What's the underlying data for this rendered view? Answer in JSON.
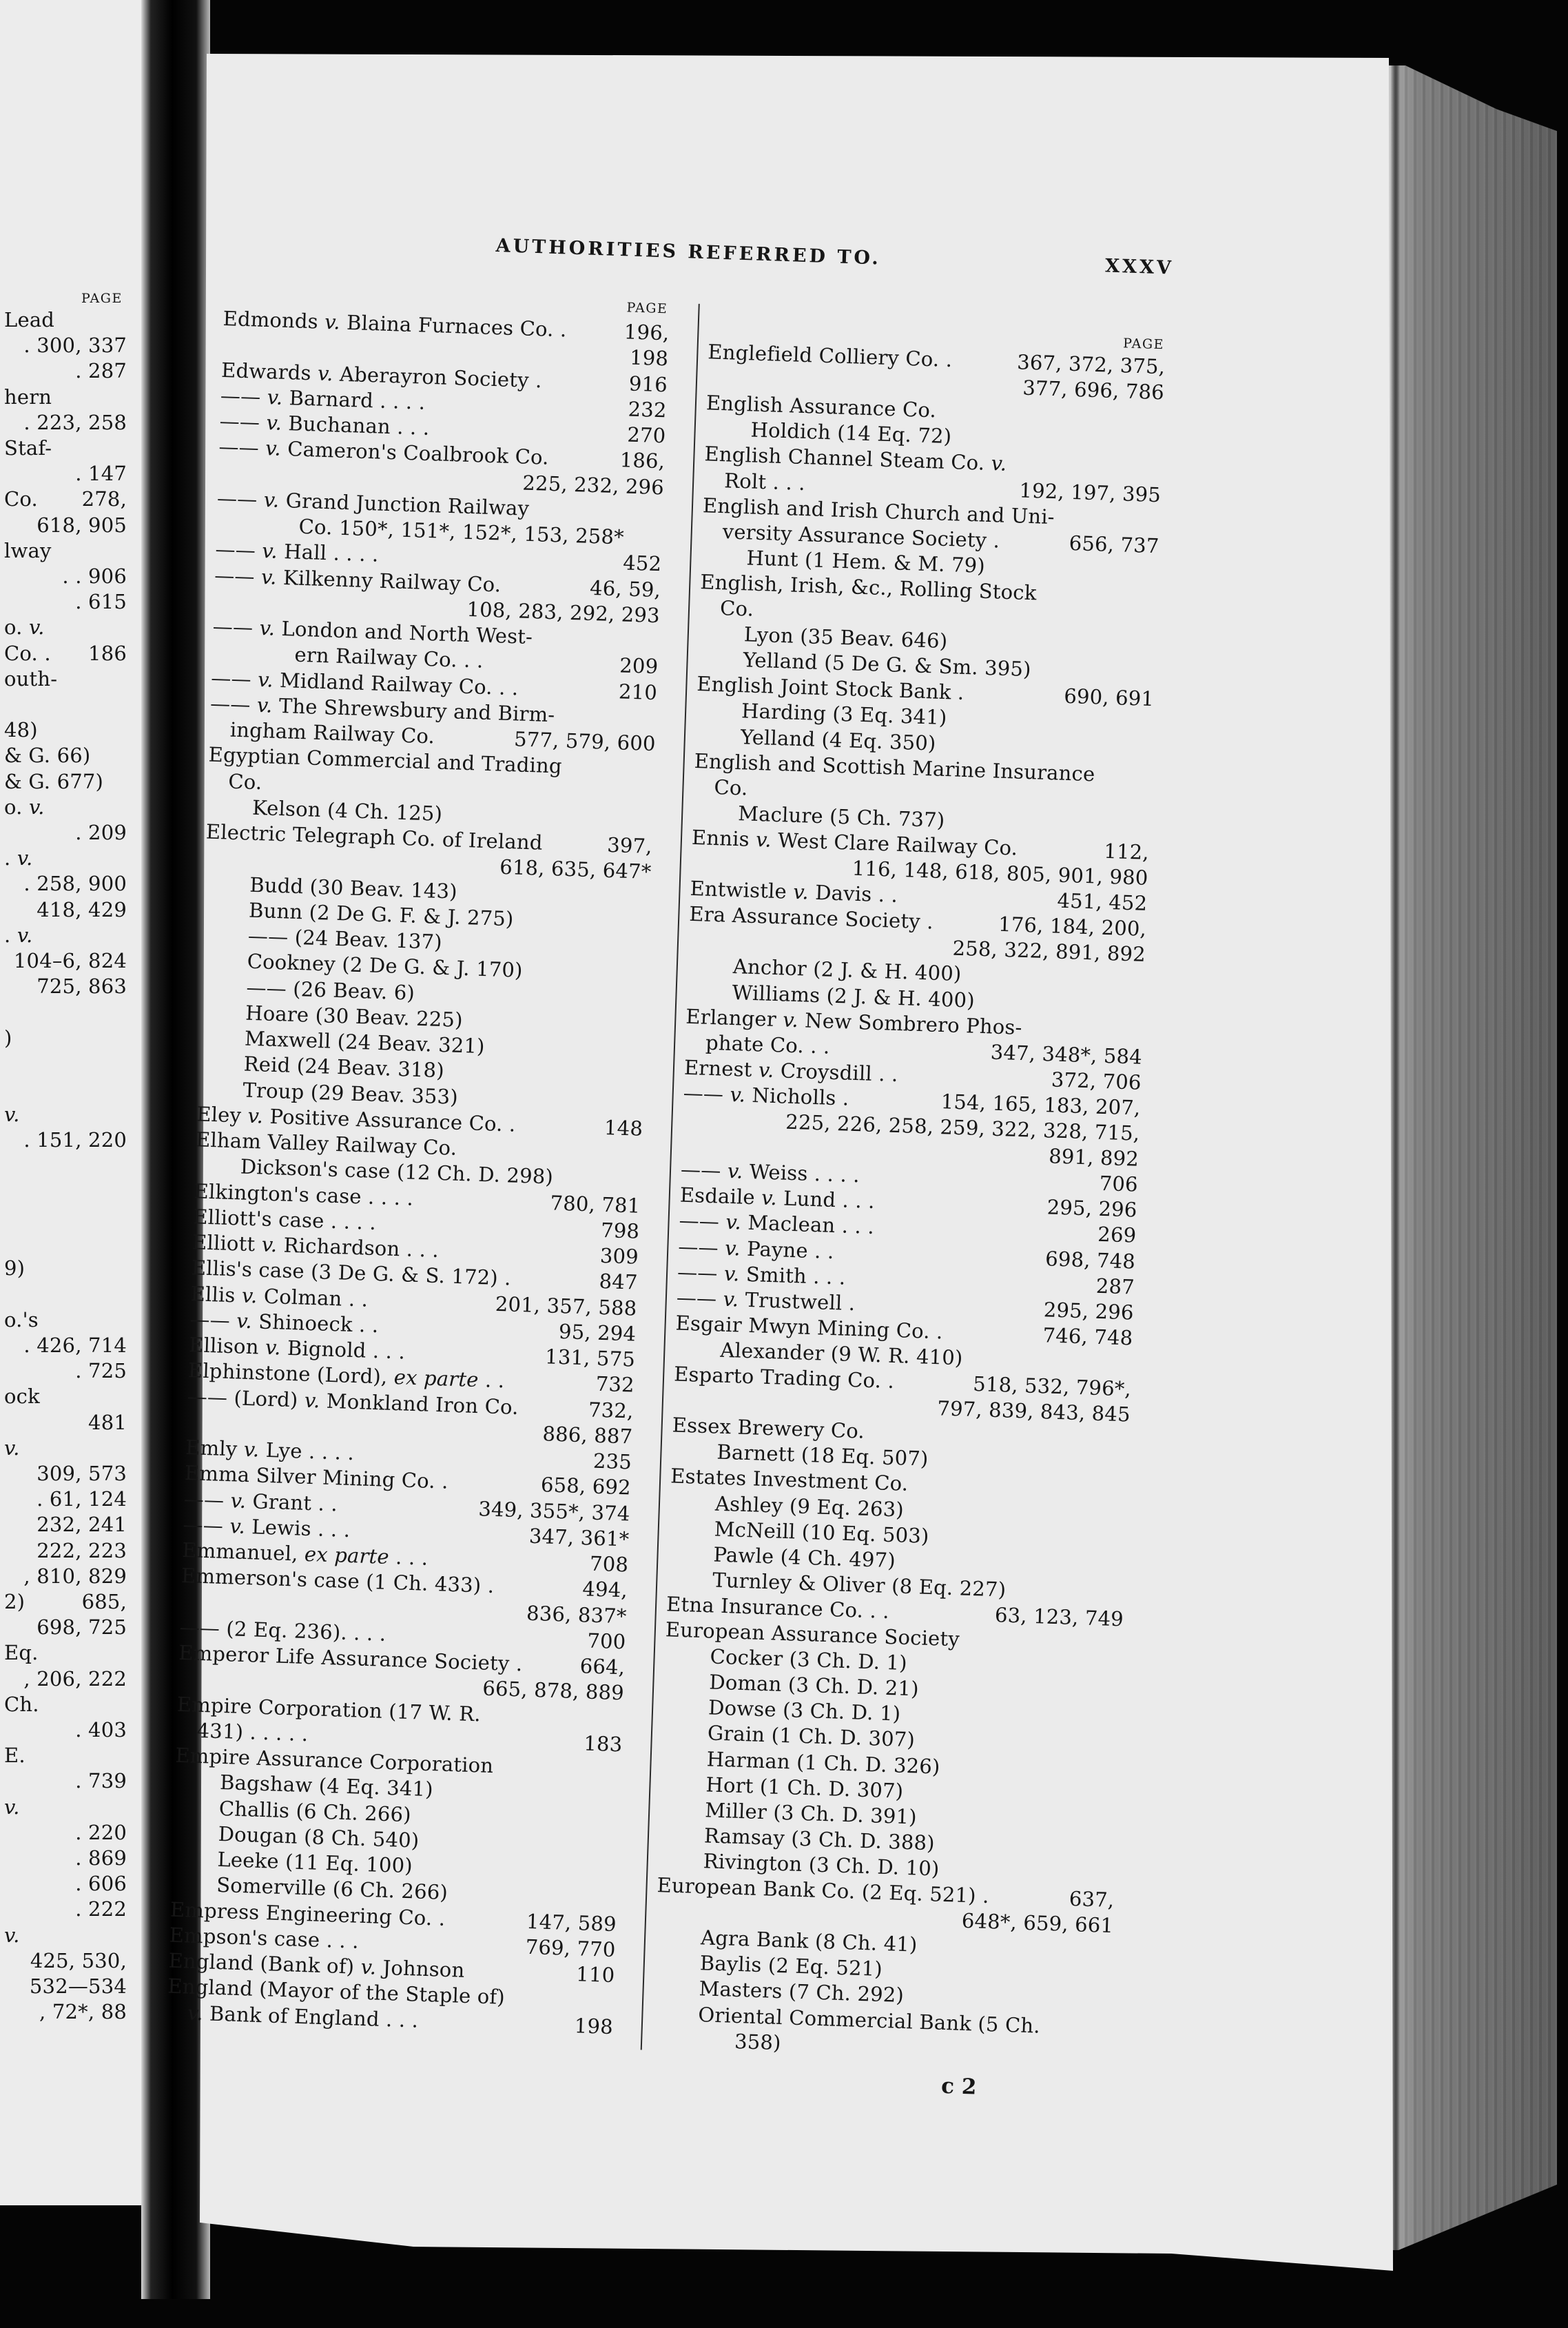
{
  "header": {
    "title": "AUTHORITIES REFERRED TO.",
    "page_number": "XXXV"
  },
  "page_label": "PAGE",
  "signature": "c 2",
  "left_page_fragment": {
    "page_label": "PAGE",
    "lines": [
      {
        "t": "Lead",
        "p": ""
      },
      {
        "t": "",
        "p": ". 300, 337"
      },
      {
        "t": "",
        "p": ". 287"
      },
      {
        "t": "hern",
        "p": ""
      },
      {
        "t": "",
        "p": ". 223, 258"
      },
      {
        "t": "Staf-",
        "p": ""
      },
      {
        "t": "",
        "p": ". 147"
      },
      {
        "t": "Co.",
        "p": "278,"
      },
      {
        "t": "",
        "p": "618, 905"
      },
      {
        "t": "lway",
        "p": ""
      },
      {
        "t": "",
        "p": ". . 906"
      },
      {
        "t": "",
        "p": ". 615"
      },
      {
        "t": "o. v.",
        "p": ""
      },
      {
        "t": "Co. .",
        "p": "186"
      },
      {
        "t": "outh-",
        "p": ""
      },
      {
        "t": "",
        "p": ""
      },
      {
        "t": "48)",
        "p": ""
      },
      {
        "t": "& G. 66)",
        "p": ""
      },
      {
        "t": "& G. 677)",
        "p": ""
      },
      {
        "t": "o. v.",
        "p": ""
      },
      {
        "t": "",
        "p": ". 209"
      },
      {
        "t": ". v.",
        "p": ""
      },
      {
        "t": "",
        "p": ". 258, 900"
      },
      {
        "t": "",
        "p": "418, 429"
      },
      {
        "t": ". v.",
        "p": ""
      },
      {
        "t": "",
        "p": "104–6, 824"
      },
      {
        "t": "",
        "p": "725, 863"
      },
      {
        "t": "",
        "p": ""
      },
      {
        "t": ")",
        "p": ""
      },
      {
        "t": "",
        "p": ""
      },
      {
        "t": "",
        "p": ""
      },
      {
        "t": "v.",
        "p": ""
      },
      {
        "t": "",
        "p": ". 151, 220"
      },
      {
        "t": "",
        "p": ""
      },
      {
        "t": "",
        "p": ""
      },
      {
        "t": "",
        "p": ""
      },
      {
        "t": "",
        "p": ""
      },
      {
        "t": "9)",
        "p": ""
      },
      {
        "t": "",
        "p": ""
      },
      {
        "t": "o.'s",
        "p": ""
      },
      {
        "t": "",
        "p": ". 426, 714"
      },
      {
        "t": "",
        "p": ". 725"
      },
      {
        "t": "ock",
        "p": ""
      },
      {
        "t": "",
        "p": "481"
      },
      {
        "t": "v.",
        "p": ""
      },
      {
        "t": "",
        "p": "309, 573"
      },
      {
        "t": "",
        "p": ". 61, 124"
      },
      {
        "t": "",
        "p": "232, 241"
      },
      {
        "t": "",
        "p": "222, 223"
      },
      {
        "t": "",
        "p": ", 810, 829"
      },
      {
        "t": "2)",
        "p": "685,"
      },
      {
        "t": "",
        "p": "698, 725"
      },
      {
        "t": "Eq.",
        "p": ""
      },
      {
        "t": "",
        "p": ", 206, 222"
      },
      {
        "t": "Ch.",
        "p": ""
      },
      {
        "t": "",
        "p": ". 403"
      },
      {
        "t": "E.",
        "p": ""
      },
      {
        "t": "",
        "p": ". 739"
      },
      {
        "t": "v.",
        "p": ""
      },
      {
        "t": "",
        "p": ". 220"
      },
      {
        "t": "",
        "p": ". 869"
      },
      {
        "t": "",
        "p": ". 606"
      },
      {
        "t": "",
        "p": ". 222"
      },
      {
        "t": "v.",
        "p": ""
      },
      {
        "t": "",
        "p": "425, 530,"
      },
      {
        "t": "",
        "p": "532—534"
      },
      {
        "t": "",
        "p": ", 72*, 88"
      }
    ]
  },
  "left_column": [
    {
      "t": "Edmonds v. Blaina Furnaces Co. .",
      "p": "196,",
      "l": 0
    },
    {
      "t": "",
      "p": "198",
      "l": 0
    },
    {
      "t": "Edwards v. Aberayron Society  .",
      "p": "916",
      "l": 0
    },
    {
      "t": "—— v. Barnard  .  .  .  .",
      "p": "232",
      "l": 0
    },
    {
      "t": "—— v. Buchanan  .  .  .",
      "p": "270",
      "l": 0
    },
    {
      "t": "—— v. Cameron's Coalbrook Co.",
      "p": "186,",
      "l": 0
    },
    {
      "t": "",
      "p": "225, 232, 296",
      "l": 0
    },
    {
      "t": "—— v. Grand Junction Railway",
      "p": "",
      "l": 0
    },
    {
      "t": "Co.  150*, 151*, 152*, 153, 258*",
      "p": "",
      "l": 3
    },
    {
      "t": "—— v. Hall  .  .  .  .",
      "p": "452",
      "l": 0
    },
    {
      "t": "—— v. Kilkenny Railway Co.",
      "p": "46, 59,",
      "l": 0
    },
    {
      "t": "",
      "p": "108, 283, 292, 293",
      "l": 0
    },
    {
      "t": "—— v. London and North West-",
      "p": "",
      "l": 0
    },
    {
      "t": "ern Railway Co.  .  .",
      "p": "209",
      "l": 3
    },
    {
      "t": "—— v. Midland Railway Co. .  .",
      "p": "210",
      "l": 0
    },
    {
      "t": "—— v. The Shrewsbury and Birm-",
      "p": "",
      "l": 0
    },
    {
      "t": "ingham Railway Co.",
      "p": "577, 579, 600",
      "l": 1
    },
    {
      "t": "Egyptian Commercial and Trading",
      "p": "",
      "l": 0
    },
    {
      "t": "Co.",
      "p": "",
      "l": 1
    },
    {
      "t": "Kelson (4 Ch. 125)",
      "p": "",
      "l": 2
    },
    {
      "t": "Electric Telegraph Co. of Ireland",
      "p": "397,",
      "l": 0
    },
    {
      "t": "",
      "p": "618, 635, 647*",
      "l": 0
    },
    {
      "t": "Budd (30 Beav. 143)",
      "p": "",
      "l": 2
    },
    {
      "t": "Bunn (2 De G. F. & J. 275)",
      "p": "",
      "l": 2
    },
    {
      "t": "—— (24 Beav. 137)",
      "p": "",
      "l": 2
    },
    {
      "t": "Cookney (2 De G. & J. 170)",
      "p": "",
      "l": 2
    },
    {
      "t": "—— (26 Beav. 6)",
      "p": "",
      "l": 2
    },
    {
      "t": "Hoare (30 Beav. 225)",
      "p": "",
      "l": 2
    },
    {
      "t": "Maxwell (24 Beav. 321)",
      "p": "",
      "l": 2
    },
    {
      "t": "Reid (24 Beav. 318)",
      "p": "",
      "l": 2
    },
    {
      "t": "Troup (29 Beav. 353)",
      "p": "",
      "l": 2
    },
    {
      "t": "Eley v. Positive Assurance Co.  .",
      "p": "148",
      "l": 0
    },
    {
      "t": "Elham Valley Railway Co.",
      "p": "",
      "l": 0
    },
    {
      "t": "Dickson's case (12 Ch. D. 298)",
      "p": "",
      "l": 2
    },
    {
      "t": "Elkington's case  .  .  .  .",
      "p": "780, 781",
      "l": 0
    },
    {
      "t": "Elliott's case  .  .  .  .",
      "p": "798",
      "l": 0
    },
    {
      "t": "Elliott v. Richardson  .  .  .",
      "p": "309",
      "l": 0
    },
    {
      "t": "Ellis's case (3 De G. & S. 172)  .",
      "p": "847",
      "l": 0
    },
    {
      "t": "Ellis v. Colman  .  .",
      "p": "201, 357, 588",
      "l": 0
    },
    {
      "t": "—— v. Shinoeck  .  .",
      "p": "95, 294",
      "l": 0
    },
    {
      "t": "Ellison v. Bignold .  .  .",
      "p": "131, 575",
      "l": 0
    },
    {
      "t": "Elphinstone (Lord), ex parte .  .",
      "p": "732",
      "l": 0
    },
    {
      "t": "—— (Lord) v. Monkland Iron Co.",
      "p": "732,",
      "l": 0
    },
    {
      "t": "",
      "p": "886, 887",
      "l": 0
    },
    {
      "t": "Emly v. Lye  .  .  .  .",
      "p": "235",
      "l": 0
    },
    {
      "t": "Emma Silver Mining Co.  .",
      "p": "658, 692",
      "l": 0
    },
    {
      "t": "—— v. Grant  .  .",
      "p": "349, 355*, 374",
      "l": 0
    },
    {
      "t": "—— v. Lewis  .  .  .",
      "p": "347, 361*",
      "l": 0
    },
    {
      "t": "Emmanuel, ex parte  .  .  .",
      "p": "708",
      "l": 0
    },
    {
      "t": "Emmerson's case (1 Ch. 433)  .",
      "p": "494,",
      "l": 0
    },
    {
      "t": "",
      "p": "836, 837*",
      "l": 0
    },
    {
      "t": "—— (2 Eq. 236).  .  .  .",
      "p": "700",
      "l": 0
    },
    {
      "t": "Emperor Life Assurance Society .",
      "p": "664,",
      "l": 0
    },
    {
      "t": "",
      "p": "665, 878, 889",
      "l": 0
    },
    {
      "t": "Empire Corporation (17 W. R.",
      "p": "",
      "l": 0
    },
    {
      "t": "431)  .  .  .  .  .",
      "p": "183",
      "l": 1
    },
    {
      "t": "Empire Assurance Corporation",
      "p": "",
      "l": 0
    },
    {
      "t": "Bagshaw (4 Eq. 341)",
      "p": "",
      "l": 2
    },
    {
      "t": "Challis (6 Ch. 266)",
      "p": "",
      "l": 2
    },
    {
      "t": "Dougan (8 Ch. 540)",
      "p": "",
      "l": 2
    },
    {
      "t": "Leeke (11 Eq. 100)",
      "p": "",
      "l": 2
    },
    {
      "t": "Somerville (6 Ch. 266)",
      "p": "",
      "l": 2
    },
    {
      "t": "Empress Engineering Co.  .",
      "p": "147, 589",
      "l": 0
    },
    {
      "t": "Empson's case  .  .  .",
      "p": "769, 770",
      "l": 0
    },
    {
      "t": "England (Bank of) v. Johnson",
      "p": "110",
      "l": 0
    },
    {
      "t": "England (Mayor of the Staple of)",
      "p": "",
      "l": 0
    },
    {
      "t": "v. Bank of England  .  .  .",
      "p": "198",
      "l": 1
    }
  ],
  "right_column": [
    {
      "t": "Englefield Colliery Co. .",
      "p": "367, 372, 375,",
      "l": 0
    },
    {
      "t": "",
      "p": "377, 696, 786",
      "l": 0
    },
    {
      "t": "English Assurance Co.",
      "p": "",
      "l": 0
    },
    {
      "t": "Holdich (14 Eq. 72)",
      "p": "",
      "l": 2
    },
    {
      "t": "English Channel Steam Co. v.",
      "p": "",
      "l": 0
    },
    {
      "t": "Rolt  .  .  .",
      "p": "192, 197, 395",
      "l": 1
    },
    {
      "t": "English and Irish Church and Uni-",
      "p": "",
      "l": 0
    },
    {
      "t": "versity Assurance Society .",
      "p": "656, 737",
      "l": 1
    },
    {
      "t": "Hunt (1 Hem. & M. 79)",
      "p": "",
      "l": 2
    },
    {
      "t": "English, Irish, &c., Rolling Stock",
      "p": "",
      "l": 0
    },
    {
      "t": "Co.",
      "p": "",
      "l": 1
    },
    {
      "t": "Lyon (35 Beav. 646)",
      "p": "",
      "l": 2
    },
    {
      "t": "Yelland (5 De G. & Sm. 395)",
      "p": "",
      "l": 2
    },
    {
      "t": "English Joint Stock Bank  .",
      "p": "690, 691",
      "l": 0
    },
    {
      "t": "Harding (3 Eq. 341)",
      "p": "",
      "l": 2
    },
    {
      "t": "Yelland (4 Eq. 350)",
      "p": "",
      "l": 2
    },
    {
      "t": "English and Scottish Marine Insurance",
      "p": "",
      "l": 0
    },
    {
      "t": "Co.",
      "p": "",
      "l": 1
    },
    {
      "t": "Maclure (5 Ch. 737)",
      "p": "",
      "l": 2
    },
    {
      "t": "Ennis v. West Clare Railway Co.",
      "p": "112,",
      "l": 0
    },
    {
      "t": "",
      "p": "116, 148, 618, 805, 901, 980",
      "l": 0
    },
    {
      "t": "Entwistle v. Davis  .  .",
      "p": "451, 452",
      "l": 0
    },
    {
      "t": "Era Assurance Society .",
      "p": "176, 184, 200,",
      "l": 0
    },
    {
      "t": "",
      "p": "258, 322, 891, 892",
      "l": 0
    },
    {
      "t": "Anchor (2 J. & H. 400)",
      "p": "",
      "l": 2
    },
    {
      "t": "Williams (2 J. & H. 400)",
      "p": "",
      "l": 2
    },
    {
      "t": "Erlanger v. New Sombrero Phos-",
      "p": "",
      "l": 0
    },
    {
      "t": "phate Co.  .  .",
      "p": "347, 348*, 584",
      "l": 1
    },
    {
      "t": "Ernest v. Croysdill  .  .",
      "p": "372, 706",
      "l": 0
    },
    {
      "t": "—— v. Nicholls .",
      "p": "154, 165, 183, 207,",
      "l": 0
    },
    {
      "t": "",
      "p": "225, 226, 258, 259, 322, 328, 715,",
      "l": 0
    },
    {
      "t": "",
      "p": "891, 892",
      "l": 0
    },
    {
      "t": "—— v. Weiss  .  .  .  .",
      "p": "706",
      "l": 0
    },
    {
      "t": "Esdaile v. Lund .  .  .",
      "p": "295, 296",
      "l": 0
    },
    {
      "t": "—— v. Maclean  .  .  .",
      "p": "269",
      "l": 0
    },
    {
      "t": "—— v. Payne  .  .",
      "p": "698, 748",
      "l": 0
    },
    {
      "t": "—— v. Smith  .  .  .",
      "p": "287",
      "l": 0
    },
    {
      "t": "—— v. Trustwell  .",
      "p": "295, 296",
      "l": 0
    },
    {
      "t": "Esgair Mwyn Mining Co.  .",
      "p": "746, 748",
      "l": 0
    },
    {
      "t": "Alexander (9 W. R. 410)",
      "p": "",
      "l": 2
    },
    {
      "t": "Esparto Trading Co.  .",
      "p": "518, 532, 796*,",
      "l": 0
    },
    {
      "t": "",
      "p": "797, 839, 843, 845",
      "l": 0
    },
    {
      "t": "Essex Brewery Co.",
      "p": "",
      "l": 0
    },
    {
      "t": "Barnett (18 Eq. 507)",
      "p": "",
      "l": 2
    },
    {
      "t": "Estates Investment Co.",
      "p": "",
      "l": 0
    },
    {
      "t": "Ashley (9 Eq. 263)",
      "p": "",
      "l": 2
    },
    {
      "t": "McNeill (10 Eq. 503)",
      "p": "",
      "l": 2
    },
    {
      "t": "Pawle (4 Ch. 497)",
      "p": "",
      "l": 2
    },
    {
      "t": "Turnley & Oliver (8 Eq. 227)",
      "p": "",
      "l": 2
    },
    {
      "t": "Etna Insurance Co.  .  .",
      "p": "63, 123, 749",
      "l": 0
    },
    {
      "t": "European Assurance Society",
      "p": "",
      "l": 0
    },
    {
      "t": "Cocker (3 Ch. D. 1)",
      "p": "",
      "l": 2
    },
    {
      "t": "Doman (3 Ch. D. 21)",
      "p": "",
      "l": 2
    },
    {
      "t": "Dowse (3 Ch. D. 1)",
      "p": "",
      "l": 2
    },
    {
      "t": "Grain (1 Ch. D. 307)",
      "p": "",
      "l": 2
    },
    {
      "t": "Harman (1 Ch. D. 326)",
      "p": "",
      "l": 2
    },
    {
      "t": "Hort (1 Ch. D. 307)",
      "p": "",
      "l": 2
    },
    {
      "t": "Miller (3 Ch. D. 391)",
      "p": "",
      "l": 2
    },
    {
      "t": "Ramsay (3 Ch. D. 388)",
      "p": "",
      "l": 2
    },
    {
      "t": "Rivington (3 Ch. D. 10)",
      "p": "",
      "l": 2
    },
    {
      "t": "European Bank Co. (2 Eq. 521) .",
      "p": "637,",
      "l": 0
    },
    {
      "t": "",
      "p": "648*, 659, 661",
      "l": 0
    },
    {
      "t": "Agra Bank (8 Ch. 41)",
      "p": "",
      "l": 2
    },
    {
      "t": "Baylis (2 Eq. 521)",
      "p": "",
      "l": 2
    },
    {
      "t": "Masters (7 Ch. 292)",
      "p": "",
      "l": 2
    },
    {
      "t": "Oriental Commercial Bank (5 Ch.",
      "p": "",
      "l": 2
    },
    {
      "t": "358)",
      "p": "",
      "l": 3
    }
  ]
}
